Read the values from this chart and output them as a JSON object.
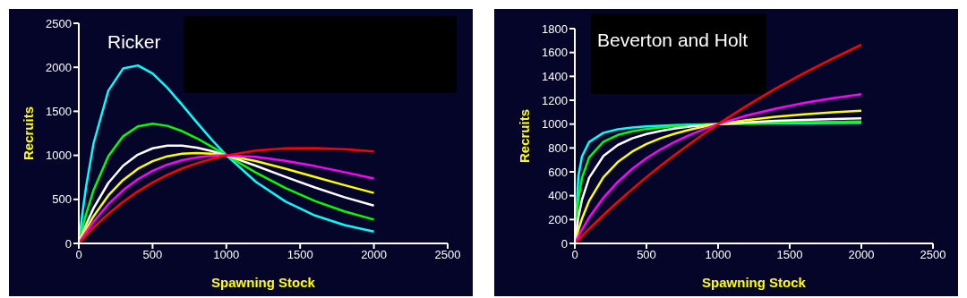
{
  "chart_data": [
    {
      "type": "line",
      "title": "Ricker",
      "xlabel": "Spawning Stock",
      "ylabel": "Recruits",
      "marker": "none",
      "x": [
        0,
        25,
        50,
        100,
        200,
        300,
        400,
        500,
        600,
        700,
        800,
        900,
        1000,
        1200,
        1400,
        1600,
        1800,
        2000
      ],
      "xlim": [
        0,
        2500
      ],
      "xticks": [
        0,
        500,
        1000,
        1500,
        2000,
        2500
      ],
      "ylim": [
        0,
        2500
      ],
      "yticks": [
        0,
        500,
        1000,
        1500,
        2000,
        2500
      ],
      "series": [
        {
          "color": "#00ffff",
          "values": [
            0,
            348,
            650,
            1136,
            1734,
            1986,
            2021,
            1929,
            1767,
            1574,
            1373,
            1179,
            1000,
            699,
            476,
            317,
            208,
            134
          ]
        },
        {
          "color": "#00ff00",
          "values": [
            0,
            176,
            334,
            605,
            990,
            1216,
            1328,
            1359,
            1335,
            1275,
            1194,
            1099,
            1000,
            804,
            629,
            482,
            363,
            271
          ]
        },
        {
          "color": "#ffffff",
          "values": [
            0,
            112,
            216,
            400,
            686,
            881,
            1008,
            1080,
            1111,
            1111,
            1088,
            1050,
            1000,
            882,
            756,
            635,
            525,
            429
          ]
        },
        {
          "color": "#ffff00",
          "values": [
            0,
            85,
            164,
            308,
            544,
            720,
            847,
            934,
            989,
            1018,
            1027,
            1020,
            1000,
            935,
            849,
            755,
            662,
            573
          ]
        },
        {
          "color": "#ff00ff",
          "values": [
            0,
            66,
            129,
            246,
            445,
            604,
            729,
            824,
            895,
            945,
            977,
            995,
            1000,
            983,
            938,
            878,
            809,
            736
          ]
        },
        {
          "color": "#ff0000",
          "values": [
            0,
            47,
            93,
            180,
            336,
            473,
            591,
            692,
            778,
            851,
            911,
            960,
            1000,
            1054,
            1079,
            1083,
            1070,
            1044
          ]
        }
      ]
    },
    {
      "type": "line",
      "title": "Beverton and Holt",
      "xlabel": "Spawning Stock",
      "ylabel": "Recruits",
      "marker": "none",
      "x": [
        0,
        25,
        50,
        100,
        200,
        300,
        400,
        500,
        600,
        700,
        800,
        900,
        1000,
        1200,
        1400,
        1600,
        1800,
        2000
      ],
      "xlim": [
        0,
        2500
      ],
      "xticks": [
        0,
        500,
        1000,
        1500,
        2000,
        2500
      ],
      "ylim": [
        0,
        1800
      ],
      "yticks": [
        0,
        200,
        400,
        600,
        800,
        1000,
        1200,
        1400,
        1600,
        1800
      ],
      "series": [
        {
          "color": "#00ffff",
          "values": [
            0,
            567,
            729,
            850,
            927,
            956,
            971,
            981,
            987,
            992,
            995,
            998,
            1000,
            1003,
            1006,
            1007,
            1009,
            1010
          ]
        },
        {
          "color": "#00ff00",
          "values": [
            0,
            373,
            550,
            721,
            853,
            909,
            940,
            959,
            972,
            982,
            989,
            995,
            1000,
            1007,
            1012,
            1016,
            1019,
            1022
          ]
        },
        {
          "color": "#ffffff",
          "values": [
            0,
            220,
            367,
            550,
            733,
            825,
            880,
            917,
            943,
            963,
            978,
            990,
            1000,
            1015,
            1027,
            1035,
            1042,
            1048
          ]
        },
        {
          "color": "#ffff00",
          "values": [
            0,
            114,
            208,
            357,
            556,
            682,
            769,
            833,
            882,
            921,
            952,
            978,
            1000,
            1034,
            1061,
            1081,
            1098,
            1111
          ]
        },
        {
          "color": "#ff00ff",
          "values": [
            0,
            60,
            116,
            217,
            384,
            516,
            624,
            714,
            789,
            853,
            909,
            957,
            1000,
            1072,
            1129,
            1177,
            1217,
            1251
          ]
        },
        {
          "color": "#ff0000",
          "values": [
            0,
            31,
            62,
            122,
            238,
            349,
            455,
            556,
            653,
            745,
            833,
            918,
            1000,
            1154,
            1296,
            1428,
            1550,
            1665
          ]
        }
      ]
    }
  ]
}
